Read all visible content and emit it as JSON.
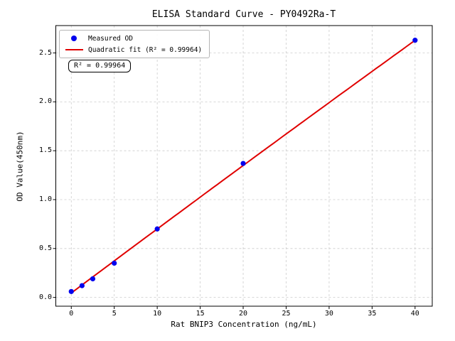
{
  "figure": {
    "background": "#ffffff"
  },
  "chart_data": {
    "type": "scatter",
    "title": "ELISA Standard Curve - PY0492Ra-T",
    "xlabel": "Rat BNIP3 Concentration (ng/mL)",
    "ylabel": "OD Value(450nm)",
    "xlim": [
      -1.8,
      42
    ],
    "ylim": [
      -0.09,
      2.78
    ],
    "x_ticks": [
      0,
      5,
      10,
      15,
      20,
      25,
      30,
      35,
      40
    ],
    "y_ticks": [
      0,
      0.5,
      1,
      1.5,
      2,
      2.5
    ],
    "grid": true,
    "grid_style": "dashed",
    "legend_position": "upper-left",
    "series": [
      {
        "name": "Measured OD",
        "type": "scatter",
        "color": "#0202ee",
        "x": [
          0,
          1.25,
          2.5,
          5,
          10,
          20,
          40
        ],
        "y": [
          0.06,
          0.12,
          0.19,
          0.35,
          0.7,
          1.37,
          2.63
        ]
      },
      {
        "name": "Quadratic fit (R² = 0.99964)",
        "type": "line",
        "color": "#e00000",
        "x_range": [
          0,
          40
        ],
        "quadratic_coeffs": {
          "a": -3e-05,
          "b": 0.0658,
          "c": 0.045
        },
        "r_squared": 0.99964
      }
    ],
    "legend": {
      "items": [
        {
          "label": "Measured OD",
          "marker": "dot",
          "color": "#0202ee"
        },
        {
          "label": "Quadratic fit (R² = 0.99964)",
          "marker": "line",
          "color": "#e00000"
        }
      ]
    },
    "annotation": {
      "text": "R² = 0.99964"
    },
    "colors": {
      "grid": "#cccccc",
      "frame": "#000000",
      "text": "#000000"
    }
  }
}
